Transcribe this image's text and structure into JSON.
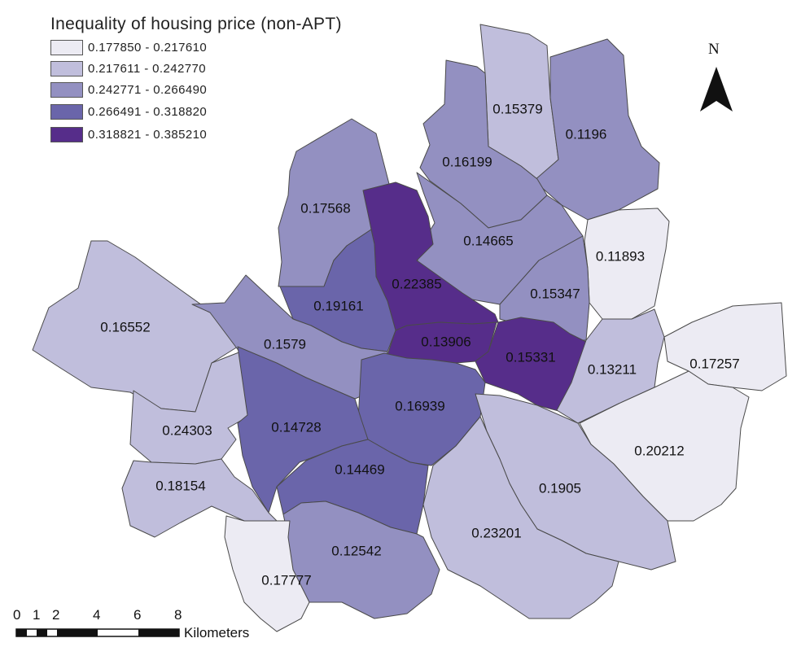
{
  "legend": {
    "title": "Inequality of housing price (non-APT)",
    "classes": [
      {
        "label": "0.177850 - 0.217610",
        "color": "#ecebf3"
      },
      {
        "label": "0.217611 - 0.242770",
        "color": "#c0bedc"
      },
      {
        "label": "0.242771 - 0.266490",
        "color": "#9390c1"
      },
      {
        "label": "0.266491 - 0.318820",
        "color": "#6a65aa"
      },
      {
        "label": "0.318821 - 0.385210",
        "color": "#562d8a"
      }
    ]
  },
  "north_arrow": {
    "letter": "N"
  },
  "scale_bar": {
    "ticks": [
      "0",
      "1",
      "2",
      "4",
      "6",
      "8"
    ],
    "unit": "Kilometers"
  },
  "districts": [
    {
      "value": "0.15379",
      "class": 1
    },
    {
      "value": "0.1196",
      "class": 2
    },
    {
      "value": "0.16199",
      "class": 2
    },
    {
      "value": "0.17568",
      "class": 2
    },
    {
      "value": "0.14665",
      "class": 2
    },
    {
      "value": "0.11893",
      "class": 0
    },
    {
      "value": "0.22385",
      "class": 4
    },
    {
      "value": "0.15347",
      "class": 2
    },
    {
      "value": "0.19161",
      "class": 3
    },
    {
      "value": "0.16552",
      "class": 1
    },
    {
      "value": "0.1579",
      "class": 2
    },
    {
      "value": "0.13906",
      "class": 4
    },
    {
      "value": "0.15331",
      "class": 4
    },
    {
      "value": "0.13211",
      "class": 1
    },
    {
      "value": "0.17257",
      "class": 0
    },
    {
      "value": "0.16939",
      "class": 3
    },
    {
      "value": "0.24303",
      "class": 1
    },
    {
      "value": "0.14728",
      "class": 3
    },
    {
      "value": "0.20212",
      "class": 0
    },
    {
      "value": "0.14469",
      "class": 3
    },
    {
      "value": "0.18154",
      "class": 1
    },
    {
      "value": "0.1905",
      "class": 1
    },
    {
      "value": "0.23201",
      "class": 1
    },
    {
      "value": "0.12542",
      "class": 2
    },
    {
      "value": "0.17777",
      "class": 0
    }
  ]
}
